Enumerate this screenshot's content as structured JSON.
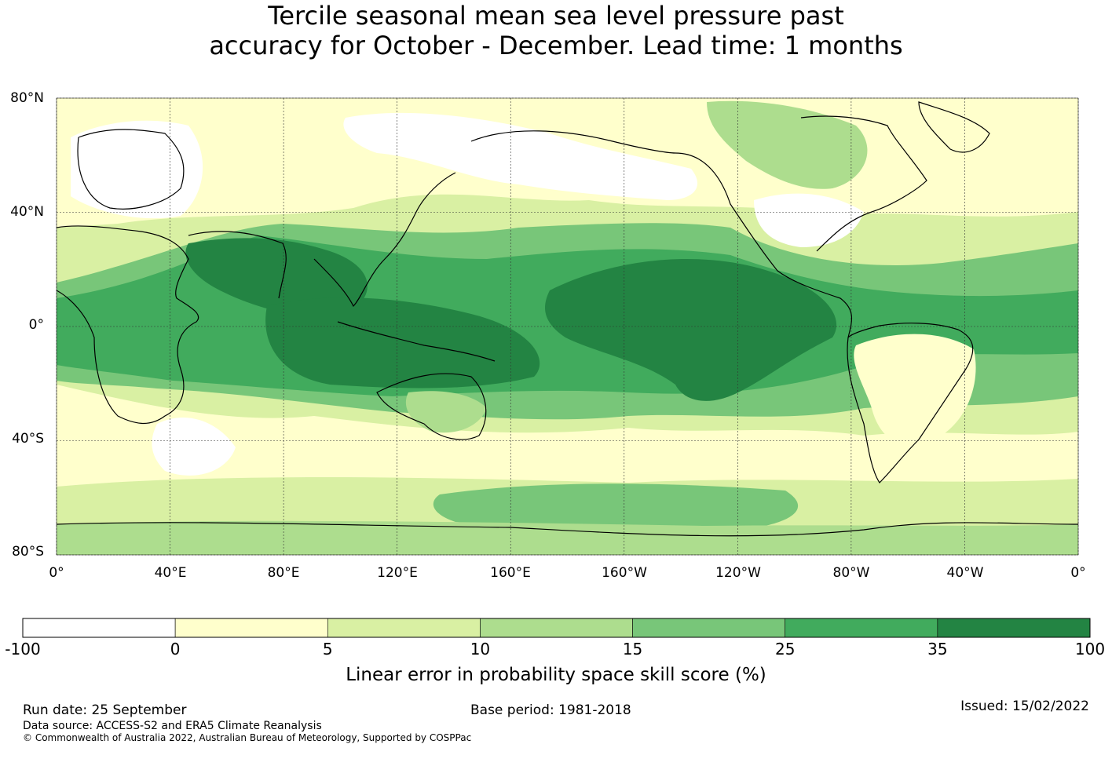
{
  "title_line1": "Tercile seasonal mean sea level pressure past",
  "title_line2": "accuracy for October - December. Lead time: 1 months",
  "map": {
    "lon_labels": [
      "0°",
      "40°E",
      "80°E",
      "120°E",
      "160°E",
      "160°W",
      "120°W",
      "80°W",
      "40°W",
      "0°"
    ],
    "lat_labels": [
      "80°N",
      "40°N",
      "0°",
      "40°S",
      "80°S"
    ],
    "lat_range": [
      -80,
      80
    ],
    "lon_range": [
      0,
      360
    ],
    "gridlines": true
  },
  "colorbar": {
    "label": "Linear error in probability space skill score (%)",
    "ticks": [
      "-100",
      "0",
      "5",
      "10",
      "15",
      "25",
      "35",
      "100"
    ],
    "bins": [
      {
        "from": "-100",
        "to": "0",
        "color": "#ffffff"
      },
      {
        "from": "0",
        "to": "5",
        "color": "#ffffcc"
      },
      {
        "from": "5",
        "to": "10",
        "color": "#d9f0a3"
      },
      {
        "from": "10",
        "to": "15",
        "color": "#addd8e"
      },
      {
        "from": "15",
        "to": "25",
        "color": "#78c679"
      },
      {
        "from": "25",
        "to": "35",
        "color": "#41ab5d"
      },
      {
        "from": "35",
        "to": "100",
        "color": "#238443"
      }
    ]
  },
  "footer": {
    "run_date": "Run date: 25 September",
    "base_period": "Base period: 1981-2018",
    "issued": "Issued: 15/02/2022",
    "data_source": "Data source: ACCESS-S2 and ERA5 Climate Reanalysis",
    "copyright": "© Commonwealth of Australia 2022, Australian Bureau of Meteorology, Supported by COSPPac"
  }
}
